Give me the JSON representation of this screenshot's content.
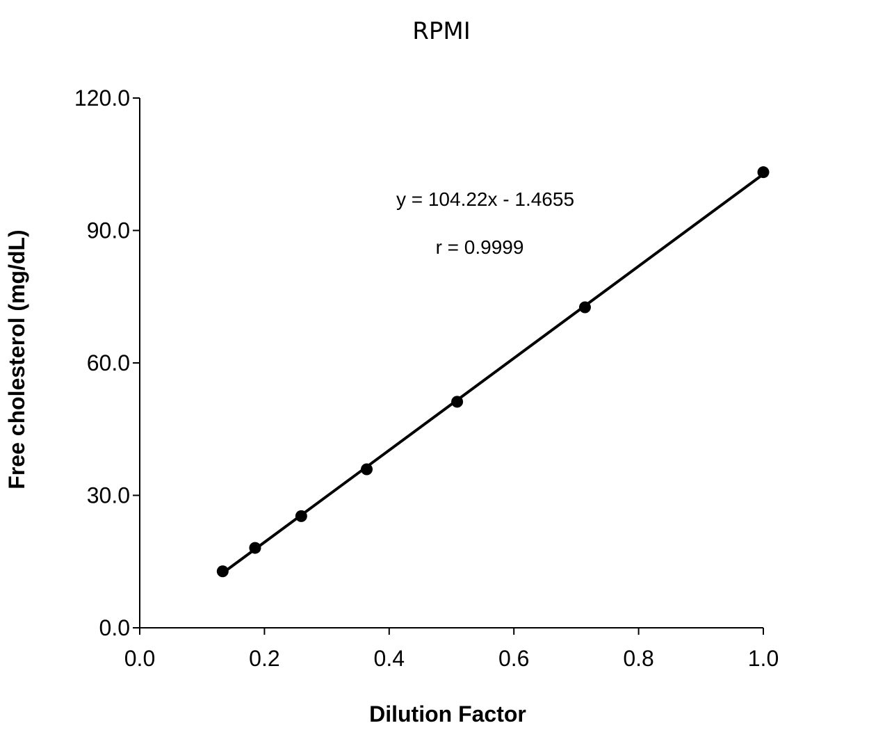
{
  "chart_data": {
    "type": "scatter",
    "title": "RPMI",
    "xlabel": "Dilution Factor",
    "ylabel": "Free cholesterol (mg/dL)",
    "xlim": [
      0.0,
      1.0
    ],
    "ylim": [
      0.0,
      120.0
    ],
    "x_ticks": [
      "0.0",
      "0.2",
      "0.4",
      "0.6",
      "0.8",
      "1.0"
    ],
    "y_ticks": [
      "0.0",
      "30.0",
      "60.0",
      "90.0",
      "120.0"
    ],
    "grid": false,
    "legend": "none",
    "series": [
      {
        "x": [
          0.133,
          0.185,
          0.259,
          0.364,
          0.509,
          0.714,
          1.0
        ],
        "y": [
          12.8,
          18.1,
          25.3,
          35.9,
          51.2,
          72.6,
          103.2
        ]
      }
    ],
    "trendline": {
      "slope": 104.22,
      "intercept": -1.4655,
      "x_range": [
        0.133,
        1.0
      ]
    },
    "annotations": [
      "y = 104.22x - 1.4655",
      "r = 0.9999"
    ],
    "colors": {
      "marker": "#000000",
      "line": "#000000",
      "axis": "#000000"
    }
  }
}
